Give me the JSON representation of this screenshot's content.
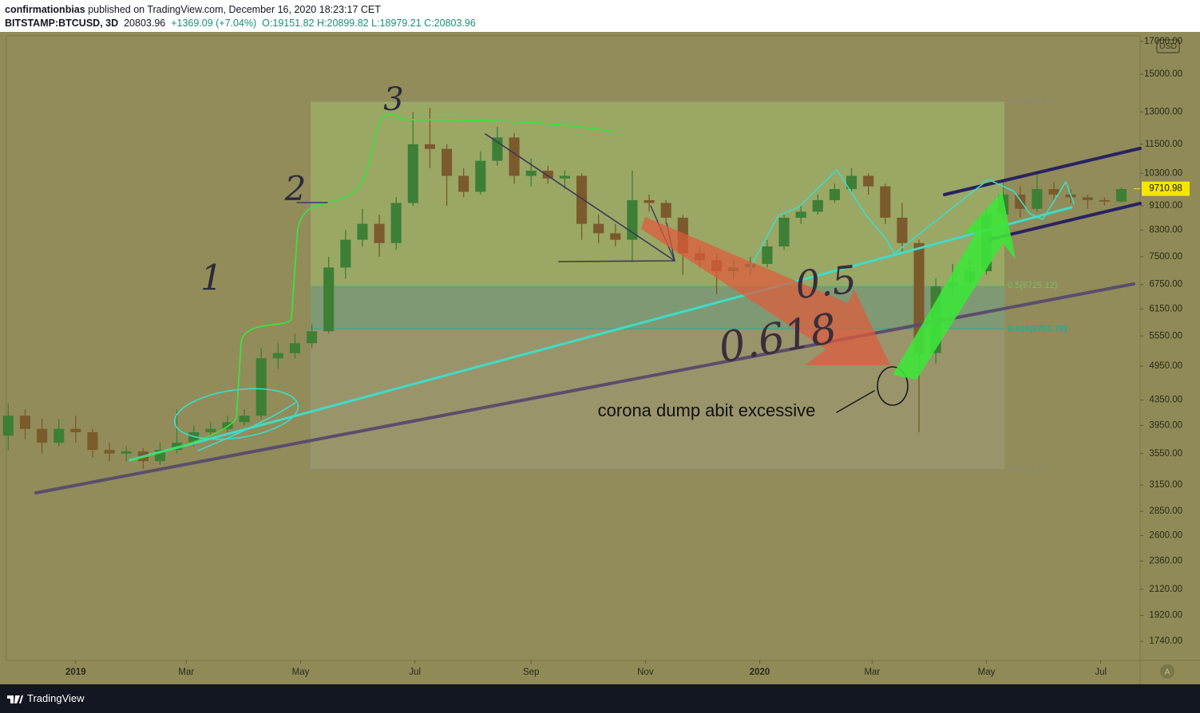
{
  "header": {
    "author": "confirmationbias",
    "published": "published on TradingView.com, December 16, 2020 18:23:17 CET",
    "symbol": "BITSTAMP:BTCUSD, 3D",
    "price": "20803.96",
    "change": "+1369.09 (+7.04%)",
    "open": "O:19151.82",
    "high": "H:20899.82",
    "low": "L:18979.21",
    "close": "C:20803.96"
  },
  "footer": {
    "brand": "TradingView"
  },
  "chart_data": {
    "type": "candlestick",
    "log_scale": true,
    "currency": "USD",
    "up_color": "#3d7f35",
    "down_color": "#7b5a2c",
    "x": [
      -36,
      -27,
      -18,
      -9,
      0,
      9,
      18,
      27,
      36,
      45,
      54,
      63,
      72,
      81,
      90,
      99,
      108,
      117,
      126,
      135,
      144,
      153,
      162,
      171,
      180,
      189,
      198,
      207,
      216,
      225,
      234,
      243,
      252,
      261,
      270,
      279,
      288,
      297,
      306,
      315,
      324,
      333,
      342,
      351,
      360,
      369,
      378,
      387,
      396,
      405,
      414,
      423,
      432,
      441,
      450,
      459,
      468,
      477,
      486,
      495,
      504,
      513,
      522,
      531,
      540,
      549,
      558
    ],
    "open": [
      3800,
      4100,
      3900,
      3700,
      3900,
      3850,
      3600,
      3550,
      3580,
      3450,
      3600,
      3700,
      3850,
      3900,
      4000,
      4100,
      5100,
      5200,
      5400,
      5650,
      7200,
      8000,
      8500,
      7900,
      9200,
      11500,
      11300,
      10200,
      9600,
      10800,
      11800,
      10200,
      10400,
      10100,
      10200,
      8500,
      8200,
      8000,
      9300,
      9200,
      8700,
      7600,
      7400,
      7100,
      7200,
      7300,
      7800,
      8700,
      8900,
      9300,
      9700,
      10200,
      9800,
      8700,
      7900,
      5200,
      6700,
      6800,
      7100,
      8800,
      9500,
      9000,
      9700,
      9500,
      9400,
      9300,
      9250
    ],
    "high": [
      4300,
      4200,
      4050,
      4050,
      4100,
      3900,
      3700,
      3650,
      3620,
      3700,
      4200,
      3950,
      4000,
      4100,
      4200,
      5300,
      5400,
      5600,
      5800,
      7500,
      8300,
      9000,
      8800,
      9400,
      13000,
      13200,
      11500,
      10500,
      11200,
      12300,
      12000,
      10900,
      10600,
      10400,
      10300,
      8800,
      8500,
      10400,
      9500,
      9300,
      8800,
      7800,
      7600,
      7400,
      7500,
      8000,
      8800,
      9100,
      9500,
      9900,
      10500,
      10300,
      9900,
      9200,
      8000,
      6900,
      7300,
      7400,
      9000,
      10000,
      9800,
      10300,
      9950,
      9700,
      9500,
      9400,
      9750
    ],
    "low": [
      3600,
      3750,
      3550,
      3650,
      3700,
      3500,
      3450,
      3450,
      3350,
      3400,
      3550,
      3650,
      3800,
      3850,
      3950,
      4050,
      4900,
      5100,
      5300,
      5600,
      6900,
      7800,
      7500,
      7700,
      9100,
      10500,
      9100,
      9400,
      9500,
      10600,
      9900,
      9800,
      9900,
      9700,
      8000,
      7900,
      7800,
      7400,
      8900,
      8500,
      7000,
      7200,
      6500,
      6900,
      7000,
      7200,
      7700,
      8500,
      8800,
      9200,
      9600,
      9500,
      8500,
      7600,
      3850,
      5000,
      6400,
      6600,
      7000,
      8600,
      8700,
      8900,
      9300,
      9200,
      9000,
      9100,
      9200
    ],
    "close": [
      4100,
      3900,
      3700,
      3900,
      3850,
      3600,
      3550,
      3580,
      3450,
      3600,
      3700,
      3850,
      3900,
      4000,
      4100,
      5100,
      5200,
      5400,
      5650,
      7200,
      8000,
      8500,
      7900,
      9200,
      11500,
      11300,
      10200,
      9600,
      10800,
      11800,
      10200,
      10400,
      10100,
      10200,
      8500,
      8200,
      8000,
      9300,
      9200,
      8700,
      7600,
      7400,
      7100,
      7200,
      7300,
      7800,
      8700,
      8900,
      9300,
      9700,
      10200,
      9800,
      8700,
      7900,
      5200,
      6700,
      6800,
      7100,
      8800,
      9500,
      9000,
      9700,
      9500,
      9400,
      9300,
      9250,
      9700
    ],
    "last_price": {
      "value": 9710.98,
      "label": "9710.98"
    },
    "ylim": [
      1618,
      17360
    ],
    "yticks": [
      {
        "value": 17000,
        "label": "17000.00"
      },
      {
        "value": 15000,
        "label": "15000.00"
      },
      {
        "value": 13000,
        "label": "13000.00"
      },
      {
        "value": 11500,
        "label": "11500.00"
      },
      {
        "value": 10300,
        "label": "10300.00"
      },
      {
        "value": 9100,
        "label": "9100.00"
      },
      {
        "value": 8300,
        "label": "8300.00"
      },
      {
        "value": 7500,
        "label": "7500.00"
      },
      {
        "value": 6750,
        "label": "6750.00"
      },
      {
        "value": 6150,
        "label": "6150.00"
      },
      {
        "value": 5550,
        "label": "5550.00"
      },
      {
        "value": 4950,
        "label": "4950.00"
      },
      {
        "value": 4350,
        "label": "4350.00"
      },
      {
        "value": 3950,
        "label": "3950.00"
      },
      {
        "value": 3550,
        "label": "3550.00"
      },
      {
        "value": 3150,
        "label": "3150.00"
      },
      {
        "value": 2850,
        "label": "2850.00"
      },
      {
        "value": 2600,
        "label": "2600.00"
      },
      {
        "value": 2360,
        "label": "2360.00"
      },
      {
        "value": 2120,
        "label": "2120.00"
      },
      {
        "value": 1920,
        "label": "1920.00"
      },
      {
        "value": 1740,
        "label": "1740.00"
      }
    ],
    "xlim": [
      -37,
      568
    ],
    "xticks": [
      {
        "value": 0,
        "label": "2019"
      },
      {
        "value": 59,
        "label": "Mar"
      },
      {
        "value": 120,
        "label": "May"
      },
      {
        "value": 181,
        "label": "Jul"
      },
      {
        "value": 243,
        "label": "Sep"
      },
      {
        "value": 304,
        "label": "Nov"
      },
      {
        "value": 365,
        "label": "2020"
      },
      {
        "value": 425,
        "label": "Mar"
      },
      {
        "value": 486,
        "label": "May"
      },
      {
        "value": 547,
        "label": "Jul"
      }
    ],
    "fib_levels": [
      {
        "value": 13540.96,
        "label": "0(13540.96)"
      },
      {
        "value": 6725.12,
        "label": "0.5(6725.12)"
      },
      {
        "value": 5701.79,
        "label": "0.618(5701.79)"
      },
      {
        "value": 3340.57,
        "label": "1(3340.57)"
      }
    ],
    "annotation": "corona dump abit excessive",
    "handwritten_labels": [
      "1",
      "2",
      "3",
      "0.5",
      "0.618"
    ]
  }
}
